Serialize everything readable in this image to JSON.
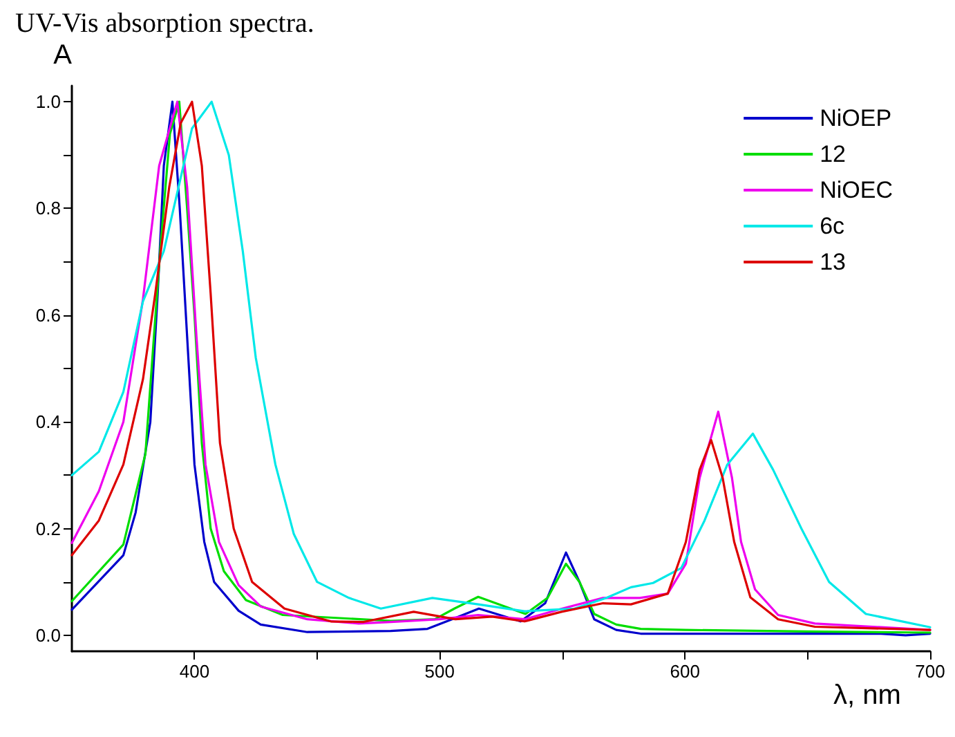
{
  "chart_data": {
    "type": "line",
    "title": "UV-Vis absorption spectra.",
    "xlabel": "λ, nm",
    "ylabel": "A",
    "xlim": [
      350,
      700
    ],
    "xticks": [
      {
        "value": 400,
        "label": "400"
      },
      {
        "value": 450,
        "label": null
      },
      {
        "value": 500,
        "label": "500"
      },
      {
        "value": 550,
        "label": null
      },
      {
        "value": 600,
        "label": "600"
      },
      {
        "value": 650,
        "label": null
      },
      {
        "value": 700,
        "label": "700"
      }
    ],
    "ylim": [
      -0.03,
      1.03
    ],
    "yticks": [
      {
        "value": 0,
        "label": "0.0"
      },
      {
        "value": 0.1,
        "label": null
      },
      0.2,
      {
        "value": 0.3,
        "label": null
      },
      0.4,
      {
        "value": 0.5,
        "label": null
      },
      0.6,
      {
        "value": 0.7,
        "label": null
      },
      0.8,
      {
        "value": 0.9,
        "label": null
      },
      {
        "value": 1,
        "label": "1.0"
      }
    ],
    "grid": false,
    "legend": "top right",
    "marker": "none",
    "line_style": "solid",
    "series": [
      {
        "name": "NiOEP",
        "color": "#0000cc",
        "x": [
          350,
          371,
          376,
          382,
          385,
          387.5,
          391,
          394,
          397,
          400,
          404,
          408,
          418,
          427,
          446,
          480,
          495,
          505,
          516,
          533,
          543,
          551.5,
          557,
          563,
          572,
          582,
          620,
          680,
          690,
          700
        ],
        "values": [
          0.048,
          0.15,
          0.23,
          0.4,
          0.64,
          0.88,
          1.0,
          0.8,
          0.56,
          0.32,
          0.175,
          0.1,
          0.046,
          0.02,
          0.006,
          0.008,
          0.012,
          0.03,
          0.05,
          0.026,
          0.06,
          0.155,
          0.1,
          0.03,
          0.01,
          0.003,
          0.003,
          0.003,
          0.0,
          0.003
        ]
      },
      {
        "name": "12",
        "color": "#00dd00",
        "x": [
          350,
          371,
          380,
          386,
          390,
          393.8,
          397,
          400,
          403,
          406.6,
          412,
          421,
          436,
          480,
          498,
          506,
          515.7,
          526,
          535,
          544,
          551.5,
          557,
          563,
          572,
          582,
          600,
          650,
          700
        ],
        "values": [
          0.064,
          0.17,
          0.34,
          0.72,
          0.94,
          1.0,
          0.8,
          0.6,
          0.36,
          0.2,
          0.12,
          0.066,
          0.038,
          0.027,
          0.03,
          0.05,
          0.072,
          0.055,
          0.04,
          0.07,
          0.134,
          0.1,
          0.04,
          0.02,
          0.012,
          0.01,
          0.007,
          0.005
        ]
      },
      {
        "name": "NiOEC",
        "color": "#ee00ee",
        "x": [
          350,
          361,
          371,
          379,
          385.6,
          393,
          397,
          400.8,
          404.5,
          410,
          418,
          427,
          446,
          467,
          480,
          500,
          515.7,
          534.6,
          550,
          566.6,
          581.6,
          593,
          600.4,
          606,
          613.6,
          619.2,
          622.9,
          628.6,
          638,
          653,
          700
        ],
        "values": [
          0.173,
          0.27,
          0.4,
          0.63,
          0.88,
          1.0,
          0.84,
          0.56,
          0.32,
          0.175,
          0.094,
          0.054,
          0.03,
          0.022,
          0.025,
          0.03,
          0.038,
          0.03,
          0.05,
          0.07,
          0.07,
          0.078,
          0.134,
          0.295,
          0.419,
          0.295,
          0.175,
          0.086,
          0.038,
          0.022,
          0.01
        ]
      },
      {
        "name": "6c",
        "color": "#00e8e8",
        "x": [
          350,
          361,
          371,
          379,
          387.5,
          393,
          399,
          407,
          414,
          419.7,
          425,
          433,
          440.5,
          450,
          463,
          476,
          497,
          515.7,
          534.6,
          555,
          568,
          578,
          587,
          598.5,
          608,
          617.3,
          627.7,
          636,
          647.5,
          658.8,
          673.8,
          700
        ],
        "values": [
          0.3,
          0.344,
          0.456,
          0.626,
          0.72,
          0.83,
          0.95,
          1.0,
          0.9,
          0.72,
          0.52,
          0.32,
          0.19,
          0.1,
          0.07,
          0.05,
          0.07,
          0.058,
          0.045,
          0.05,
          0.07,
          0.09,
          0.098,
          0.126,
          0.215,
          0.32,
          0.378,
          0.31,
          0.2,
          0.1,
          0.04,
          0.015
        ]
      },
      {
        "name": "13",
        "color": "#dd0000",
        "x": [
          350,
          361,
          371,
          379,
          384,
          389.7,
          394.4,
          399,
          403,
          406.6,
          410.4,
          416,
          423.5,
          436.7,
          455.6,
          469,
          489.4,
          506.4,
          521.4,
          534.6,
          549.7,
          566.6,
          578,
          593,
          600.4,
          606,
          610.7,
          615.4,
          620.1,
          626.7,
          638,
          653,
          700
        ],
        "values": [
          0.15,
          0.215,
          0.32,
          0.48,
          0.64,
          0.84,
          0.96,
          1.0,
          0.88,
          0.64,
          0.36,
          0.2,
          0.1,
          0.05,
          0.026,
          0.025,
          0.044,
          0.03,
          0.035,
          0.026,
          0.044,
          0.06,
          0.058,
          0.078,
          0.175,
          0.31,
          0.366,
          0.295,
          0.175,
          0.071,
          0.03,
          0.016,
          0.01
        ]
      }
    ]
  }
}
